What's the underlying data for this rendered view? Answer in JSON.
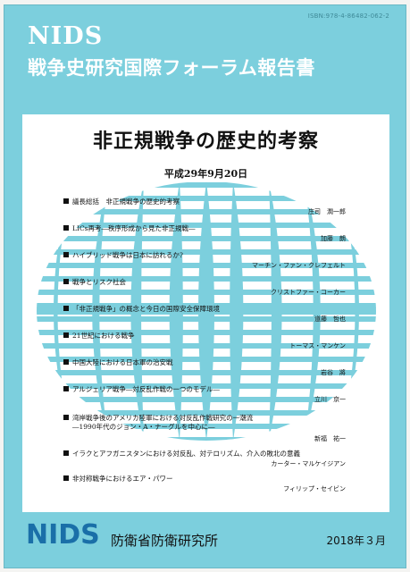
{
  "isbn": "ISBN:978-4-86482-062-2",
  "header": {
    "brand": "NIDS",
    "series_title": "戦争史研究国際フォーラム報告書"
  },
  "main": {
    "title": "非正規戦争の歴史的考察",
    "date": "平成29年9月20日"
  },
  "toc": [
    {
      "title": "議長総括　非正規戦争の歴史的考察",
      "author": "庄司　潤一郎"
    },
    {
      "title": "LICs再考―秩序形成から見た非正規戦―",
      "author": "加藤　朗"
    },
    {
      "title": "ハイブリッド戦争は日本に訪れるか?",
      "author": "マーチン・ファン・クレフェルト"
    },
    {
      "title": "戦争とリスク社会",
      "author": "クリストファー・コーカー"
    },
    {
      "title": "「非正規戦争」の概念と今日の国際安全保障環境",
      "author": "道藤　哲也"
    },
    {
      "title": "21世紀における戦争",
      "author": "トーマス・マンケン"
    },
    {
      "title": "中国大陸における日本軍の治安戦",
      "author": "岩谷　將"
    },
    {
      "title": "アルジェリア戦争―対反乱作戦の一つのモデル―",
      "author": "立川　京一"
    },
    {
      "title": "湾岸戦争後のアメリカ陸軍における対反乱作戦研究の一潮流",
      "subtitle": "―1990年代のジョン・A・ナーグルを中心に―",
      "author": "新福　祐一"
    },
    {
      "title": "イラクとアフガニスタンにおける対反乱、対テロリズム、介入の敗北の意義",
      "author": "カーター・マルケイジアン"
    },
    {
      "title": "非対称戦争におけるエア・パワー",
      "author": "フィリップ・セイビン"
    }
  ],
  "footer": {
    "brand": "NIDS",
    "publisher": "防衛省防衛研究所",
    "pub_date": "2018年３月"
  },
  "colors": {
    "cover": "#7ccfdd",
    "globe": "#7ccfdd",
    "brand_bottom": "#1a6fa8"
  }
}
